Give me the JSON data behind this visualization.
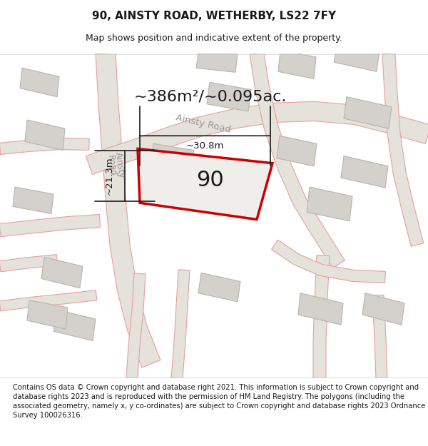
{
  "title": "90, AINSTY ROAD, WETHERBY, LS22 7FY",
  "subtitle": "Map shows position and indicative extent of the property.",
  "footer": "Contains OS data © Crown copyright and database right 2021. This information is subject to Crown copyright and database rights 2023 and is reproduced with the permission of HM Land Registry. The polygons (including the associated geometry, namely x, y co-ordinates) are subject to Crown copyright and database rights 2023 Ordnance Survey 100026316.",
  "area_text": "~386m²/~0.095ac.",
  "property_number": "90",
  "dim_width": "~30.8m",
  "dim_height": "~21.3m",
  "bg_color": "#f0eeea",
  "road_fill_color": "#e5e1db",
  "building_fill": "#d4d0cb",
  "building_edge": "#b8b4af",
  "road_line_color": "#e8a0a0",
  "property_fill": "#f0eeea",
  "property_edge": "#cc0000",
  "dim_line_color": "#1a1a1a",
  "text_color": "#1a1a1a",
  "road_text_color": "#999999",
  "title_fontsize": 11,
  "subtitle_fontsize": 9,
  "footer_fontsize": 7.2,
  "area_fontsize": 16,
  "number_fontsize": 22,
  "dim_fontsize": 9.5,
  "road_label_fontsize": 9
}
